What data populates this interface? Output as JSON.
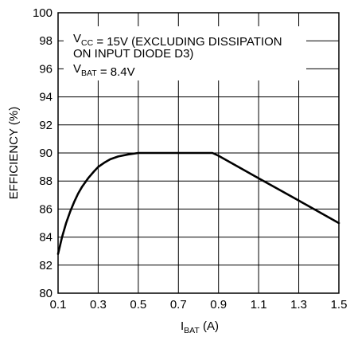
{
  "chart_data": {
    "type": "line",
    "title": "",
    "xlabel": {
      "main": "I",
      "sub": "BAT",
      "rest": " (A)"
    },
    "ylabel": "EFFICIENCY (%)",
    "xlim": [
      0.1,
      1.5
    ],
    "ylim": [
      80,
      100
    ],
    "x_ticks": [
      "0.1",
      "0.3",
      "0.5",
      "0.7",
      "0.9",
      "1.1",
      "1.3",
      "1.5"
    ],
    "y_ticks": [
      "80",
      "82",
      "84",
      "86",
      "88",
      "90",
      "92",
      "94",
      "96",
      "98",
      "100"
    ],
    "grid": true,
    "annotations": [
      {
        "parts": [
          {
            "t": "V"
          },
          {
            "t": "CC",
            "sub": true
          },
          {
            "t": " = 15V (EXCLUDING DISSIPATION"
          }
        ]
      },
      {
        "parts": [
          {
            "t": "ON INPUT DIODE D3)"
          }
        ]
      },
      {
        "parts": [
          {
            "t": "V"
          },
          {
            "t": "BAT",
            "sub": true
          },
          {
            "t": " = 8.4V"
          }
        ]
      }
    ],
    "series": [
      {
        "x": [
          0.1,
          0.12,
          0.14,
          0.16,
          0.18,
          0.2,
          0.22,
          0.25,
          0.28,
          0.3,
          0.33,
          0.36,
          0.4,
          0.45,
          0.5,
          0.55,
          0.6,
          0.7,
          0.8,
          0.87,
          0.9,
          1.0,
          1.1,
          1.2,
          1.3,
          1.4,
          1.5
        ],
        "y": [
          82.8,
          84.0,
          85.0,
          85.8,
          86.5,
          87.1,
          87.6,
          88.2,
          88.7,
          89.0,
          89.3,
          89.55,
          89.75,
          89.9,
          90.0,
          90.0,
          90.0,
          90.0,
          90.0,
          90.0,
          89.8,
          89.0,
          88.2,
          87.4,
          86.6,
          85.8,
          85.0
        ]
      }
    ]
  }
}
